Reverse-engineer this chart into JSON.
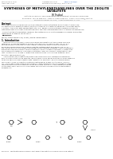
{
  "journal_name": "Petroleum & Coal",
  "issn": "ISSN 1337-7027",
  "available_online": "Available online at",
  "url": "www.vurup.sk/pc",
  "journal_ref": "Petroleum & Coal 52 (1) 20-27, 2010",
  "title_line1": "SYNTHESES OF METHYLENEDIANILINES OVER THE ZEOLITE",
  "title_line2": "CATALYSTS",
  "author": "Jiří Trujbal",
  "affil1": "Institute of Chemical Technology, Prague, Department of Organic Technology,",
  "affil2": "Technická 5, 166 28 Prague 6 - Dejvice, Czech Republic,  e-mail: jiri.trujbal@vscht.cz",
  "received": "Received November 18, 2010;  Accepted December 3, 2010",
  "abstract_head": "Abstract",
  "abstract_body": [
    "Syntheses of methylenedianilines over zeolites with various structures were studied. It was found",
    "out that the most selective catalyst for the synthesis of 4,4'-methylenedianiline isomer was zeolite",
    "Y. Further, the kinetic data showed that initial 4,4'- diphenylaminomethane isomers from zeolite",
    "catalysts is even one order of magnitude faster than the intermediate product 4-amino-N-benzylaniline.",
    "The most suitable temperature range for the synthesis of 4,4'-methylenedianiline isomer was further",
    "identified as a range of 100 to 120°C."
  ],
  "keywords_label": "Keywords:",
  "keywords_body": "zeolite; methylenedianiline; kinetic; zeolite, isomerization.",
  "section1": "1. Introduction",
  "intro1": [
    "    Methylenedianilines (MDA) is formed by amine condensation in the presence of an acid",
    "catalyst [1]. During the synthesis, primarily o,p'-MDA (6,1 %), and o,o'-MDA (14 %), also",
    "form apart from the required 4,4'-MDA isomer. Trimers and other irregular polymers of",
    "aniline and formaldehyde are formed during the synthesis apart from dimers (75 %). In",
    "the reaction mixture, MDA production belongs to high-capacity processes, and it constitutes a",
    "preliminary step for production of isocyanate thus, which is a basic component for production",
    "of polyisocyanate materials. The usual constitutes of over 90 % of MDA concentrations. The",
    "rest, less than 10 %, is used for production of epoxy resins, anti-corrosion materials, dyes",
    "and other special products [1]."
  ],
  "intro2": [
    "    The oldest but still nowadays the most used catalysis for MDA synthesis is hydrochloric",
    "acid. The amount of the acid used the large experience is in aniline electrophilic acid's response",
    "to aniline, which is used in reaction with respect to its selectivity, when the formaldehyde",
    "conversion is close. The reaction mixture is neutralized by a base, mostly NaOH (50%/dry",
    "ity). A great advantage of the given procedure is that hydrochloric acid is a relatively cheap",
    "chemical substance, and a total conversion and a high yield of 4,4'- MDA isomer is reached.",
    "On the other hand, hydrochloric acid causes corrosion of the equipment and neutralization",
    "of waste sets."
  ],
  "scheme_caption": "Scheme 1. The traditional procedure of MDA production with the use of HCl as an acid catalyst.",
  "bg": "#ffffff",
  "gray": "#888888",
  "darkgray": "#555555",
  "black": "#000000",
  "blue": "#2255aa",
  "bodytext": "#333333"
}
